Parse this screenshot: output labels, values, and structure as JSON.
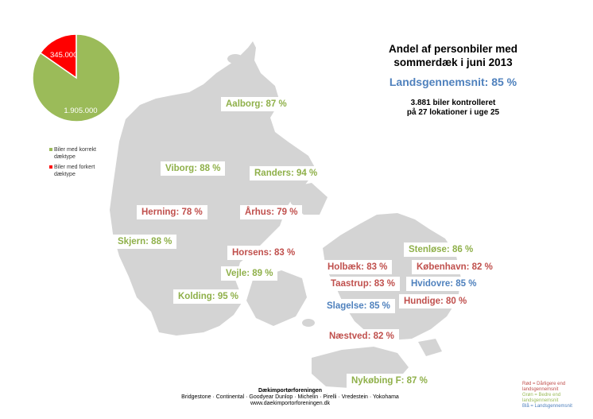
{
  "title_lines": [
    "Andel af personbiler med",
    "sommerdæk i juni 2013"
  ],
  "national_average": "Landsgennemsnit: 85 %",
  "stats_lines": [
    "3.881 biler kontrolleret",
    "på 27 lokationer i uge 25"
  ],
  "pie": {
    "slices": [
      {
        "label": "1.905.000",
        "value": 1905000,
        "color": "#9bbb59"
      },
      {
        "label": "345.000",
        "value": 345000,
        "color": "#ff0000"
      }
    ]
  },
  "legend": [
    {
      "text": "Biler med korrekt dæktype",
      "color": "#9bbb59"
    },
    {
      "text": "Biler med forkert dæktype",
      "color": "#ff0000"
    }
  ],
  "locations": [
    {
      "text": "Aalborg: 87 %",
      "status": "green"
    },
    {
      "text": "Viborg: 88 %",
      "status": "green"
    },
    {
      "text": "Randers: 94 %",
      "status": "green"
    },
    {
      "text": "Herning: 78 %",
      "status": "red"
    },
    {
      "text": "Århus: 79 %",
      "status": "red"
    },
    {
      "text": "Skjern: 88 %",
      "status": "green"
    },
    {
      "text": "Horsens: 83 %",
      "status": "red"
    },
    {
      "text": "Vejle: 89 %",
      "status": "green"
    },
    {
      "text": "Kolding: 95 %",
      "status": "green"
    },
    {
      "text": "Stenløse: 86 %",
      "status": "green"
    },
    {
      "text": "Holbæk: 83 %",
      "status": "red"
    },
    {
      "text": "København: 82 %",
      "status": "red"
    },
    {
      "text": "Taastrup: 83 %",
      "status": "red"
    },
    {
      "text": "Hvidovre: 85 %",
      "status": "blue"
    },
    {
      "text": "Hundige: 80 %",
      "status": "red"
    },
    {
      "text": "Slagelse: 85 %",
      "status": "blue"
    },
    {
      "text": "Næstved: 82 %",
      "status": "red"
    },
    {
      "text": "Nykøbing F: 87 %",
      "status": "green"
    }
  ],
  "footer": {
    "org": "Dækimportørforeningen",
    "brands": "Bridgestone · Continental · Goodyear Dunlop · Michelin · Pirelli · Vredestein · Yokohama",
    "url": "www.daekimportorforeningen.dk"
  },
  "key": [
    {
      "text": "Rød = Dårligere end landsgennemsnit",
      "color": "#c0504d"
    },
    {
      "text": "Grøn = Bedre end landsgennemsnit",
      "color": "#9bbb59"
    },
    {
      "text": "Blå = Landsgennemsnit",
      "color": "#4f81bd"
    }
  ],
  "colors": {
    "map_land": "#d4d4d4",
    "green": "#8fb04a",
    "red": "#c0504d",
    "blue": "#4f81bd"
  }
}
